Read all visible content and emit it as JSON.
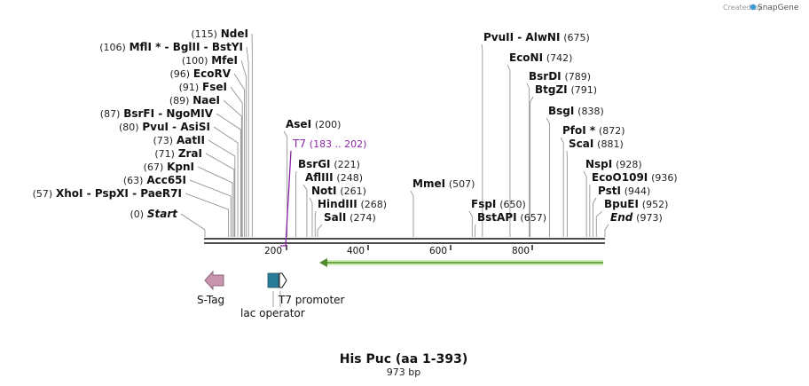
{
  "credit": {
    "text": "Created by",
    "brand": "SnapGene"
  },
  "sequence": {
    "name": "His Puc (aa 1-393)",
    "length_label": "973 bp",
    "length_bp": 973
  },
  "colors": {
    "primer": "#8e24aa",
    "orf_green": "#7ec850",
    "stag": "#c994ad",
    "lac": "#2a7b95",
    "text": "#111111",
    "line": "#888888"
  },
  "axis": {
    "ticks": [
      "200",
      "400",
      "600",
      "800"
    ]
  },
  "enzymes_left": [
    {
      "name": "Start",
      "pos": "(0)",
      "italic": true,
      "bp": 0
    },
    {
      "name": "XhoI - PspXI - PaeR7I",
      "pos": "(57)",
      "bp": 57
    },
    {
      "name": "Acc65I",
      "pos": "(63)",
      "bp": 63
    },
    {
      "name": "KpnI",
      "pos": "(67)",
      "bp": 67
    },
    {
      "name": "ZraI",
      "pos": "(71)",
      "bp": 71
    },
    {
      "name": "AatII",
      "pos": "(73)",
      "bp": 73
    },
    {
      "name": "PvuI - AsiSI",
      "pos": "(80)",
      "bp": 80
    },
    {
      "name": "BsrFI - NgoMIV",
      "pos": "(87)",
      "bp": 87
    },
    {
      "name": "NaeI",
      "pos": "(89)",
      "bp": 89
    },
    {
      "name": "FseI",
      "pos": "(91)",
      "bp": 91
    },
    {
      "name": "EcoRV",
      "pos": "(96)",
      "bp": 96
    },
    {
      "name": "MfeI",
      "pos": "(100)",
      "bp": 100
    },
    {
      "name": "MflI * - BglII - BstYI",
      "pos": "(106)",
      "bp": 106
    },
    {
      "name": "NdeI",
      "pos": "(115)",
      "bp": 115
    }
  ],
  "enzymes_mid": [
    {
      "name": "AseI",
      "pos": "(200)",
      "bp": 200
    },
    {
      "name": "BsrGI",
      "pos": "(221)",
      "bp": 221
    },
    {
      "name": "AflIII",
      "pos": "(248)",
      "bp": 248
    },
    {
      "name": "NotI",
      "pos": "(261)",
      "bp": 261
    },
    {
      "name": "HindIII",
      "pos": "(268)",
      "bp": 268
    },
    {
      "name": "SalI",
      "pos": "(274)",
      "bp": 274
    },
    {
      "name": "MmeI",
      "pos": "(507)",
      "bp": 507
    }
  ],
  "primer": {
    "name": "T7",
    "range": "(183 .. 202)",
    "bp": 183
  },
  "enzymes_right": [
    {
      "name": "PvuII - AlwNI",
      "pos": "(675)",
      "bp": 675
    },
    {
      "name": "EcoNI",
      "pos": "(742)",
      "bp": 742
    },
    {
      "name": "BsrDI",
      "pos": "(789)",
      "bp": 789
    },
    {
      "name": "BtgZI",
      "pos": "(791)",
      "bp": 791
    },
    {
      "name": "BsgI",
      "pos": "(838)",
      "bp": 838
    },
    {
      "name": "PfoI *",
      "pos": "(872)",
      "bp": 872
    },
    {
      "name": "ScaI",
      "pos": "(881)",
      "bp": 881
    },
    {
      "name": "FspI",
      "pos": "(650)",
      "bp": 650
    },
    {
      "name": "BstAPI",
      "pos": "(657)",
      "bp": 657
    },
    {
      "name": "NspI",
      "pos": "(928)",
      "bp": 928
    },
    {
      "name": "EcoO109I",
      "pos": "(936)",
      "bp": 936
    },
    {
      "name": "PstI",
      "pos": "(944)",
      "bp": 944
    },
    {
      "name": "BpuEI",
      "pos": "(952)",
      "bp": 952
    },
    {
      "name": "End",
      "pos": "(973)",
      "italic": true,
      "bp": 973
    }
  ],
  "features": [
    {
      "name": "S-Tag",
      "type": "S-Tag"
    },
    {
      "name": "lac operator",
      "type": "lac operator"
    },
    {
      "name": "T7 promoter",
      "type": "T7 promoter"
    }
  ]
}
